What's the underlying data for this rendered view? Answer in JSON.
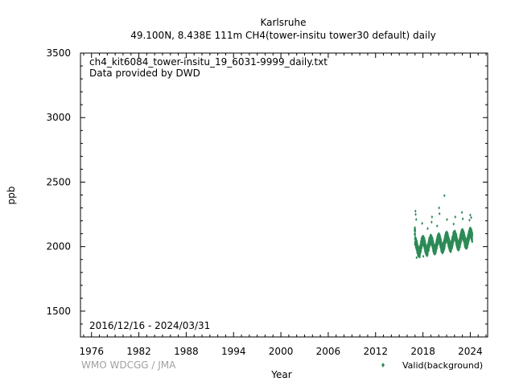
{
  "chart_data": {
    "type": "scatter",
    "title": "Karlsruhe",
    "subtitle": "49.100N, 8.438E 111m     CH4(tower-insitu tower30 default) daily",
    "xlabel": "Year",
    "ylabel": "ppb",
    "xlim": [
      1974.6,
      2026.2
    ],
    "ylim": [
      1300,
      3500
    ],
    "xticks": [
      1976,
      1982,
      1988,
      1994,
      2000,
      2006,
      2012,
      2018,
      2024
    ],
    "yticks": [
      1500,
      2000,
      2500,
      3000,
      3500
    ],
    "grid": false,
    "legend_position": "bottom-right",
    "annotations": {
      "file": "ch4_kit6084_tower-insitu_19_6031-9999_daily.txt",
      "provider": "Data provided by DWD",
      "period": "2016/12/16 - 2024/03/31"
    },
    "credit": "WMO WDCGG / JMA",
    "series": [
      {
        "name": "Valid(background)",
        "color": "#2e8b57",
        "marker": "diamond",
        "start": "2016/12/16",
        "end": "2024/03/31",
        "baseline": [
          [
            2017.0,
            1985
          ],
          [
            2018.0,
            1995
          ],
          [
            2019.0,
            2005
          ],
          [
            2020.0,
            2012
          ],
          [
            2021.0,
            2025
          ],
          [
            2022.0,
            2035
          ],
          [
            2023.0,
            2045
          ],
          [
            2024.0,
            2055
          ],
          [
            2024.25,
            2058
          ]
        ],
        "seasonal_amplitude": 45,
        "spread": [
          1915,
          2245
        ],
        "outliers": [
          [
            2017.05,
            2275
          ],
          [
            2017.08,
            2250
          ],
          [
            2017.15,
            2210
          ],
          [
            2017.9,
            2180
          ],
          [
            2018.6,
            2140
          ],
          [
            2019.1,
            2190
          ],
          [
            2019.15,
            2230
          ],
          [
            2019.8,
            2160
          ],
          [
            2020.05,
            2300
          ],
          [
            2020.1,
            2255
          ],
          [
            2020.72,
            2395
          ],
          [
            2021.05,
            2210
          ],
          [
            2021.9,
            2175
          ],
          [
            2022.1,
            2230
          ],
          [
            2022.95,
            2265
          ],
          [
            2023.05,
            2215
          ],
          [
            2023.9,
            2205
          ],
          [
            2024.0,
            2245
          ],
          [
            2024.12,
            2225
          ],
          [
            2017.2,
            1915
          ],
          [
            2017.6,
            1920
          ],
          [
            2018.05,
            1925
          ],
          [
            2018.55,
            1930
          ]
        ]
      }
    ]
  }
}
